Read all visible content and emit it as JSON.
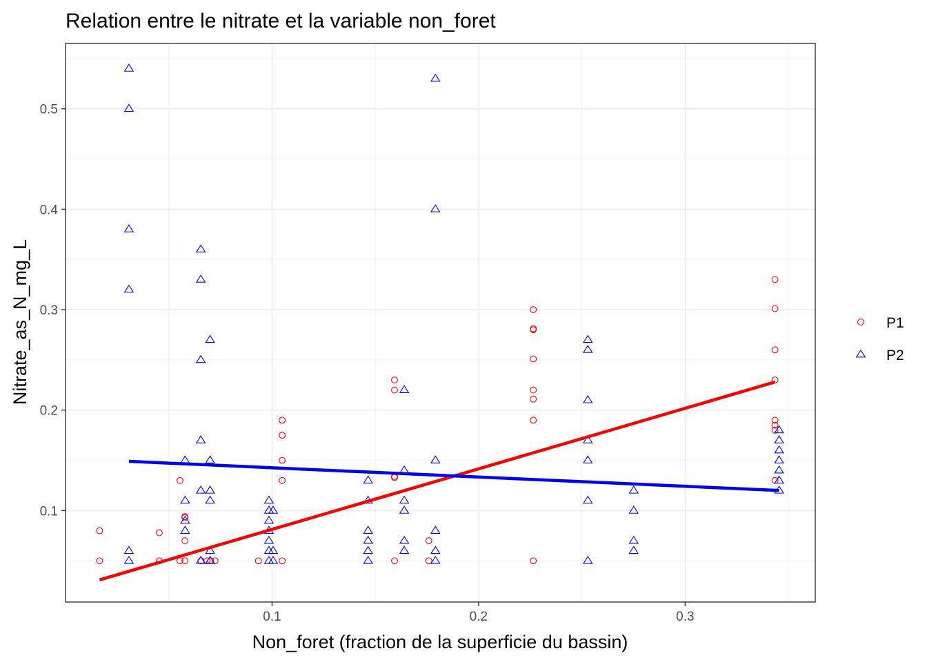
{
  "chart_data": {
    "type": "scatter",
    "title": "Relation entre le nitrate et la variable non_foret",
    "xlabel": "Non_foret (fraction de la superficie du bassin)",
    "ylabel": "Nitrate_as_N_mg_L",
    "xlim": [
      0.0,
      0.363
    ],
    "ylim": [
      0.009,
      0.565
    ],
    "x_ticks": [
      0.1,
      0.2,
      0.3
    ],
    "y_ticks": [
      0.1,
      0.2,
      0.3,
      0.4,
      0.5
    ],
    "x_tick_labels": [
      "0.1",
      "0.2",
      "0.3"
    ],
    "y_tick_labels": [
      "0.1",
      "0.2",
      "0.3",
      "0.4",
      "0.5"
    ],
    "grid": true,
    "legend_position": "right",
    "series": [
      {
        "name": "P1",
        "marker": "circle",
        "color": "#ff0000",
        "points": [
          [
            0.0165,
            0.08
          ],
          [
            0.0165,
            0.05
          ],
          [
            0.0454,
            0.05
          ],
          [
            0.0454,
            0.078
          ],
          [
            0.0554,
            0.13
          ],
          [
            0.0554,
            0.05
          ],
          [
            0.0578,
            0.094
          ],
          [
            0.0578,
            0.093
          ],
          [
            0.0578,
            0.07
          ],
          [
            0.0578,
            0.05
          ],
          [
            0.0656,
            0.05
          ],
          [
            0.0685,
            0.05
          ],
          [
            0.0703,
            0.05
          ],
          [
            0.0724,
            0.05
          ],
          [
            0.0934,
            0.05
          ],
          [
            0.1049,
            0.19
          ],
          [
            0.1049,
            0.175
          ],
          [
            0.1049,
            0.15
          ],
          [
            0.1049,
            0.13
          ],
          [
            0.1049,
            0.05
          ],
          [
            0.1593,
            0.23
          ],
          [
            0.1593,
            0.22
          ],
          [
            0.1593,
            0.134
          ],
          [
            0.1593,
            0.133
          ],
          [
            0.1593,
            0.05
          ],
          [
            0.1759,
            0.07
          ],
          [
            0.1759,
            0.05
          ],
          [
            0.2265,
            0.3
          ],
          [
            0.2265,
            0.281
          ],
          [
            0.2265,
            0.28
          ],
          [
            0.2265,
            0.251
          ],
          [
            0.2265,
            0.22
          ],
          [
            0.2265,
            0.211
          ],
          [
            0.2265,
            0.19
          ],
          [
            0.2265,
            0.05
          ],
          [
            0.3435,
            0.33
          ],
          [
            0.3435,
            0.301
          ],
          [
            0.3435,
            0.26
          ],
          [
            0.3435,
            0.23
          ],
          [
            0.3435,
            0.19
          ],
          [
            0.3435,
            0.185
          ],
          [
            0.3435,
            0.18
          ],
          [
            0.3435,
            0.13
          ]
        ]
      },
      {
        "name": "P2",
        "marker": "triangle",
        "color": "#0000ff",
        "points": [
          [
            0.0307,
            0.54
          ],
          [
            0.0307,
            0.5
          ],
          [
            0.0307,
            0.38
          ],
          [
            0.0307,
            0.32
          ],
          [
            0.0307,
            0.06
          ],
          [
            0.0307,
            0.05
          ],
          [
            0.0579,
            0.15
          ],
          [
            0.0579,
            0.11
          ],
          [
            0.0579,
            0.09
          ],
          [
            0.0579,
            0.08
          ],
          [
            0.0655,
            0.36
          ],
          [
            0.0655,
            0.33
          ],
          [
            0.0655,
            0.25
          ],
          [
            0.0655,
            0.17
          ],
          [
            0.0655,
            0.12
          ],
          [
            0.0655,
            0.05
          ],
          [
            0.07,
            0.27
          ],
          [
            0.07,
            0.15
          ],
          [
            0.07,
            0.12
          ],
          [
            0.07,
            0.11
          ],
          [
            0.07,
            0.06
          ],
          [
            0.07,
            0.05
          ],
          [
            0.0985,
            0.11
          ],
          [
            0.0985,
            0.1
          ],
          [
            0.0985,
            0.09
          ],
          [
            0.0985,
            0.08
          ],
          [
            0.0985,
            0.07
          ],
          [
            0.0985,
            0.06
          ],
          [
            0.0985,
            0.05
          ],
          [
            0.1005,
            0.1
          ],
          [
            0.1005,
            0.06
          ],
          [
            0.1005,
            0.05
          ],
          [
            0.1465,
            0.13
          ],
          [
            0.1465,
            0.11
          ],
          [
            0.1465,
            0.08
          ],
          [
            0.1465,
            0.07
          ],
          [
            0.1465,
            0.06
          ],
          [
            0.1465,
            0.05
          ],
          [
            0.164,
            0.22
          ],
          [
            0.164,
            0.14
          ],
          [
            0.164,
            0.11
          ],
          [
            0.164,
            0.1
          ],
          [
            0.164,
            0.07
          ],
          [
            0.164,
            0.06
          ],
          [
            0.1791,
            0.53
          ],
          [
            0.1791,
            0.4
          ],
          [
            0.1791,
            0.15
          ],
          [
            0.1791,
            0.08
          ],
          [
            0.1791,
            0.06
          ],
          [
            0.1791,
            0.05
          ],
          [
            0.2529,
            0.27
          ],
          [
            0.2529,
            0.26
          ],
          [
            0.2529,
            0.21
          ],
          [
            0.2529,
            0.17
          ],
          [
            0.2529,
            0.15
          ],
          [
            0.2529,
            0.11
          ],
          [
            0.2529,
            0.05
          ],
          [
            0.2751,
            0.12
          ],
          [
            0.2751,
            0.1
          ],
          [
            0.2751,
            0.07
          ],
          [
            0.2751,
            0.06
          ],
          [
            0.3455,
            0.18
          ],
          [
            0.3455,
            0.17
          ],
          [
            0.3455,
            0.16
          ],
          [
            0.3455,
            0.15
          ],
          [
            0.3455,
            0.14
          ],
          [
            0.3455,
            0.13
          ],
          [
            0.3455,
            0.12
          ]
        ]
      }
    ],
    "fit_lines": [
      {
        "series": "P1",
        "color": "#ff0000",
        "x": [
          0.0165,
          0.3435
        ],
        "y": [
          0.031,
          0.228
        ]
      },
      {
        "series": "P2",
        "color": "#0000ff",
        "x": [
          0.0307,
          0.3455
        ],
        "y": [
          0.149,
          0.12
        ]
      }
    ]
  }
}
